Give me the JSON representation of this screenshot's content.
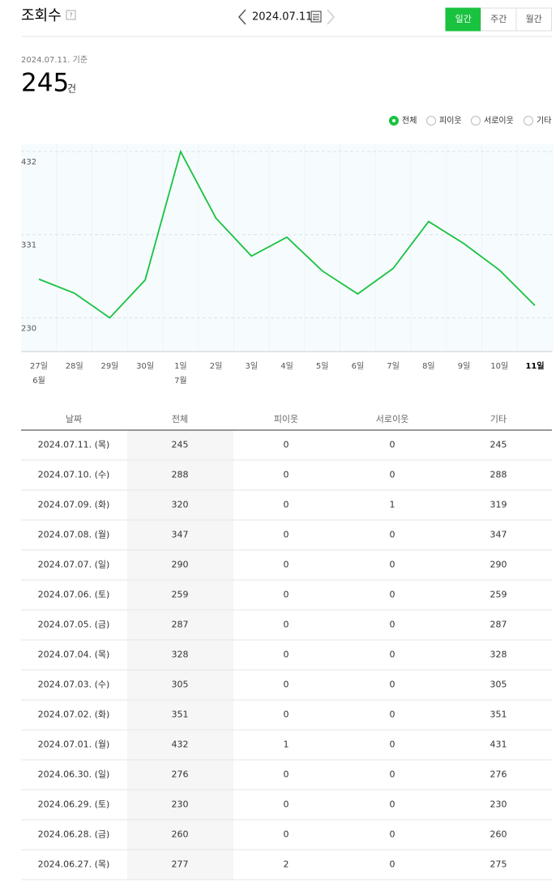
{
  "header": {
    "title": "조회수",
    "help": "?",
    "date": "2024.07.11.",
    "tabs": [
      "일간",
      "주간",
      "월간"
    ],
    "active_tab": 0
  },
  "summary": {
    "basis": "2024.07.11. 기준",
    "value": 245,
    "unit": "건"
  },
  "filters": {
    "options": [
      "전체",
      "피이웃",
      "서로이웃",
      "기타"
    ],
    "selected": 0
  },
  "chart_data": {
    "type": "line",
    "categories": [
      "27일",
      "28일",
      "29일",
      "30일",
      "1일",
      "2일",
      "3일",
      "4일",
      "5일",
      "6일",
      "7일",
      "8일",
      "9일",
      "10일",
      "11일"
    ],
    "month_labels": [
      "6월",
      null,
      null,
      null,
      "7월",
      null,
      null,
      null,
      null,
      null,
      null,
      null,
      null,
      null,
      null
    ],
    "series": [
      {
        "color": "#19c23f",
        "values": [
          277,
          260,
          230,
          276,
          432,
          351,
          305,
          328,
          287,
          259,
          290,
          347,
          320,
          288,
          245
        ]
      }
    ],
    "ylim": [
      189,
      441
    ],
    "yticks": [
      230,
      331,
      432
    ],
    "grid": true
  },
  "table": {
    "columns": [
      "날짜",
      "전체",
      "피이웃",
      "서로이웃",
      "기타"
    ],
    "rows": [
      [
        "2024.07.11. (목)",
        245,
        0,
        0,
        245
      ],
      [
        "2024.07.10. (수)",
        288,
        0,
        0,
        288
      ],
      [
        "2024.07.09. (화)",
        320,
        0,
        1,
        319
      ],
      [
        "2024.07.08. (월)",
        347,
        0,
        0,
        347
      ],
      [
        "2024.07.07. (일)",
        290,
        0,
        0,
        290
      ],
      [
        "2024.07.06. (토)",
        259,
        0,
        0,
        259
      ],
      [
        "2024.07.05. (금)",
        287,
        0,
        0,
        287
      ],
      [
        "2024.07.04. (목)",
        328,
        0,
        0,
        328
      ],
      [
        "2024.07.03. (수)",
        305,
        0,
        0,
        305
      ],
      [
        "2024.07.02. (화)",
        351,
        0,
        0,
        351
      ],
      [
        "2024.07.01. (월)",
        432,
        1,
        0,
        431
      ],
      [
        "2024.06.30. (일)",
        276,
        0,
        0,
        276
      ],
      [
        "2024.06.29. (토)",
        230,
        0,
        0,
        230
      ],
      [
        "2024.06.28. (금)",
        260,
        0,
        0,
        260
      ],
      [
        "2024.06.27. (목)",
        277,
        2,
        0,
        275
      ]
    ]
  }
}
